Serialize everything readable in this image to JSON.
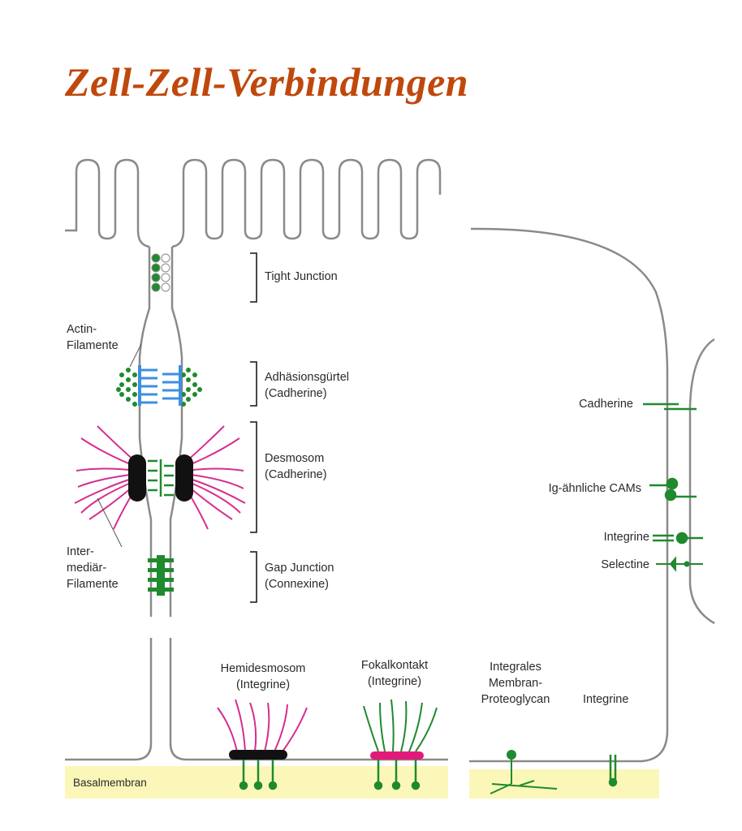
{
  "title": "Zell-Zell-Verbindungen",
  "labels": {
    "tight_junction": "Tight Junction",
    "actin_line1": "Actin-",
    "actin_line2": "Filamente",
    "adhesion_line1": "Adhäsionsgürtel",
    "adhesion_line2": "(Cadherine)",
    "desmosom_line1": "Desmosom",
    "desmosom_line2": "(Cadherine)",
    "intermed_line1": "Inter-",
    "intermed_line2": "mediär-",
    "intermed_line3": "Filamente",
    "gap_line1": "Gap Junction",
    "gap_line2": "(Connexine)",
    "hemidesmosom_line1": "Hemidesmosom",
    "hemidesmosom_line2": "(Integrine)",
    "fokal_line1": "Fokalkontakt",
    "fokal_line2": "(Integrine)",
    "proteoglycan_line1": "Integrales",
    "proteoglycan_line2": "Membran-",
    "proteoglycan_line3": "Proteoglycan",
    "integrine_bottom": "Integrine",
    "cadherine": "Cadherine",
    "ig_cams": "Ig-ähnliche CAMs",
    "integrine_right": "Integrine",
    "selectine": "Selectine",
    "basalmembran": "Basalmembran"
  },
  "colors": {
    "title": "#c0480c",
    "membrane": "#8a8a8a",
    "junction_green": "#1f8a2e",
    "actin_blue": "#3d8fe0",
    "filament_magenta": "#d62e8f",
    "plaque_black": "#111111",
    "fokal_pink": "#e3197a",
    "basal_yellow": "#fbf7b8"
  }
}
